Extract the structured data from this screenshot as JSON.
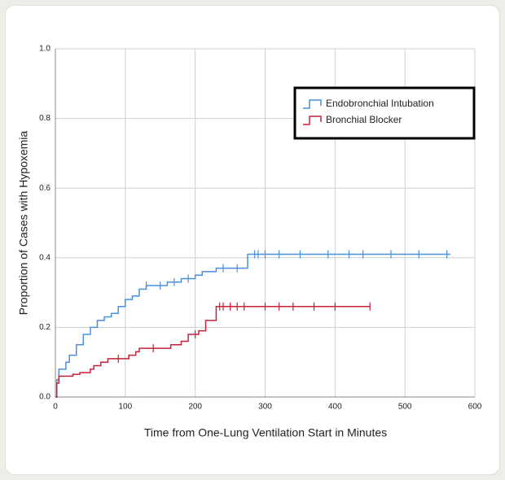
{
  "chart_data": {
    "type": "step",
    "xlabel": "Time from One-Lung Ventilation Start in Minutes",
    "ylabel": "Proportion of Cases with Hypoxemia",
    "xlim": [
      0,
      600
    ],
    "xticks": [
      0,
      100,
      200,
      300,
      400,
      500,
      600
    ],
    "ylim": [
      0,
      1
    ],
    "yticks": [
      {
        "value": 0,
        "label": "0.0"
      },
      0.2,
      0.4,
      0.6,
      0.8,
      {
        "value": 1,
        "label": "1.0"
      }
    ],
    "grid": true,
    "legend": "upper right",
    "series": [
      {
        "name": "Endobronchial Intubation",
        "color": "#4a8fdb",
        "x": [
          0,
          2,
          5,
          15,
          20,
          30,
          40,
          50,
          60,
          70,
          80,
          90,
          100,
          110,
          120,
          130,
          160,
          180,
          200,
          210,
          230,
          275,
          565
        ],
        "values": [
          0,
          0.05,
          0.08,
          0.1,
          0.12,
          0.15,
          0.18,
          0.2,
          0.22,
          0.23,
          0.24,
          0.26,
          0.28,
          0.29,
          0.31,
          0.32,
          0.33,
          0.34,
          0.35,
          0.36,
          0.37,
          0.41,
          0.41
        ],
        "censor_x": [
          130,
          150,
          170,
          190,
          240,
          260,
          285,
          290,
          300,
          320,
          350,
          390,
          420,
          440,
          480,
          520,
          560
        ]
      },
      {
        "name": "Bronchial Blocker",
        "color": "#c8213a",
        "x": [
          0,
          2,
          5,
          25,
          35,
          50,
          55,
          65,
          75,
          105,
          115,
          120,
          165,
          180,
          190,
          205,
          215,
          230,
          450
        ],
        "values": [
          0,
          0.04,
          0.06,
          0.065,
          0.07,
          0.08,
          0.09,
          0.1,
          0.11,
          0.12,
          0.13,
          0.14,
          0.15,
          0.16,
          0.18,
          0.19,
          0.22,
          0.26,
          0.26
        ],
        "censor_x": [
          90,
          140,
          200,
          235,
          240,
          250,
          260,
          270,
          300,
          320,
          340,
          370,
          400,
          450
        ]
      }
    ]
  }
}
